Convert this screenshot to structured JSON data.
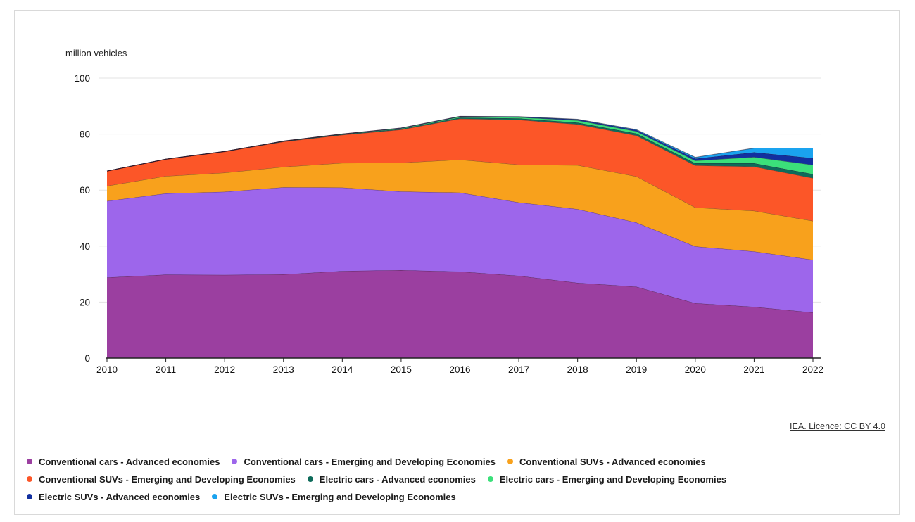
{
  "chart_data": {
    "type": "area",
    "stacked": true,
    "ylabel": "million vehicles",
    "xlabel": "",
    "ylim": [
      0,
      100
    ],
    "yticks": [
      0,
      20,
      40,
      60,
      80,
      100
    ],
    "x": [
      "2010",
      "2011",
      "2012",
      "2013",
      "2014",
      "2015",
      "2016",
      "2017",
      "2018",
      "2019",
      "2020",
      "2021",
      "2022"
    ],
    "grid": "horizontal",
    "legend_position": "bottom",
    "series": [
      {
        "name": "Conventional cars - Advanced economies",
        "color": "#9b3fa0",
        "values": [
          28.8,
          29.8,
          29.7,
          29.9,
          31.1,
          31.4,
          30.9,
          29.4,
          26.9,
          25.5,
          19.6,
          18.3,
          16.3
        ]
      },
      {
        "name": "Conventional cars - Emerging and Developing Economies",
        "color": "#9d66eb",
        "values": [
          27.3,
          29.0,
          29.7,
          31.1,
          29.8,
          28.1,
          28.2,
          26.2,
          26.3,
          22.9,
          20.3,
          19.8,
          18.8
        ]
      },
      {
        "name": "Conventional SUVs - Advanced economies",
        "color": "#f8a11c",
        "values": [
          5.4,
          6.2,
          6.8,
          7.3,
          8.8,
          10.3,
          11.8,
          13.5,
          15.7,
          16.5,
          13.9,
          14.5,
          13.9
        ]
      },
      {
        "name": "Conventional SUVs - Emerging and Developing Economies",
        "color": "#fc5628",
        "values": [
          5.3,
          6.0,
          7.5,
          9.0,
          10.0,
          11.8,
          14.6,
          16.0,
          14.6,
          14.6,
          15.0,
          15.8,
          15.3
        ]
      },
      {
        "name": "Electric cars - Advanced economies",
        "color": "#0e6b5a",
        "values": [
          0.0,
          0.05,
          0.1,
          0.15,
          0.2,
          0.25,
          0.4,
          0.5,
          0.6,
          0.7,
          0.8,
          1.2,
          1.4
        ]
      },
      {
        "name": "Electric cars - Emerging and Developing Economies",
        "color": "#3be07a",
        "values": [
          0.0,
          0.0,
          0.0,
          0.05,
          0.1,
          0.2,
          0.3,
          0.4,
          0.8,
          0.8,
          0.9,
          2.2,
          3.3
        ]
      },
      {
        "name": "Electric SUVs - Advanced economies",
        "color": "#12309f",
        "values": [
          0.0,
          0.0,
          0.0,
          0.0,
          0.05,
          0.1,
          0.1,
          0.15,
          0.3,
          0.4,
          0.7,
          1.7,
          2.4
        ]
      },
      {
        "name": "Electric SUVs - Emerging and Developing Economies",
        "color": "#1aa3ef",
        "values": [
          0.0,
          0.0,
          0.0,
          0.0,
          0.0,
          0.05,
          0.05,
          0.1,
          0.1,
          0.2,
          0.5,
          1.5,
          3.6
        ]
      }
    ]
  },
  "credit": "IEA. Licence: CC BY 4.0"
}
